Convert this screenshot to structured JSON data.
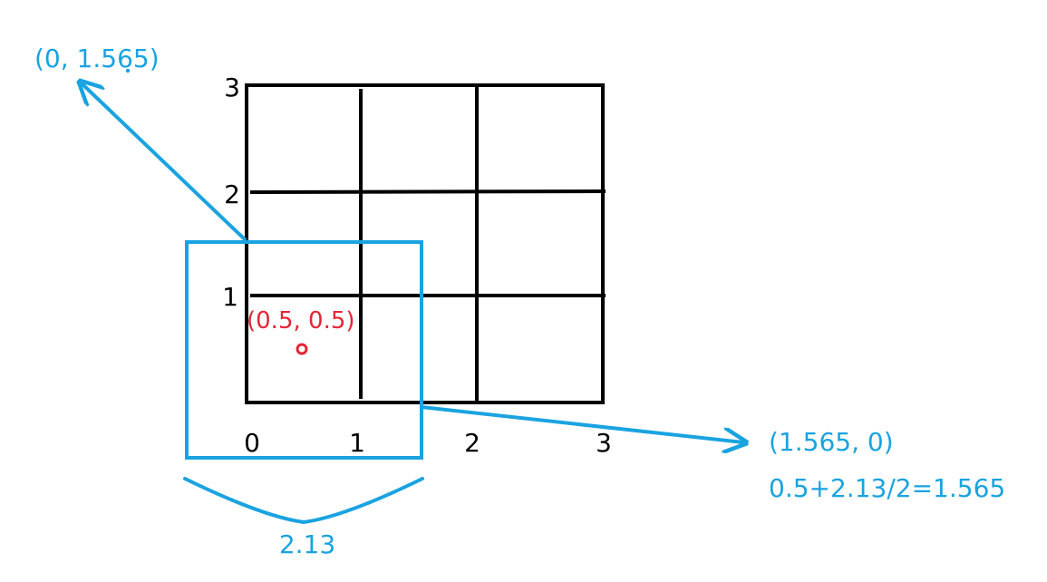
{
  "grid": {
    "x_ticks": [
      "0",
      "1",
      "2",
      "3"
    ],
    "y_ticks": [
      "1",
      "2",
      "3"
    ]
  },
  "annotations": {
    "center_label": "(0.5, 0.5)",
    "top_left_point": "(0, 1.565)",
    "right_point": "(1.565, 0)",
    "formula": "0.5+2.13/2=1.565",
    "width_label": "2.13"
  },
  "colors": {
    "grid": "#000000",
    "accent_blue": "#1aa3e0",
    "highlight_red": "#e32636"
  }
}
